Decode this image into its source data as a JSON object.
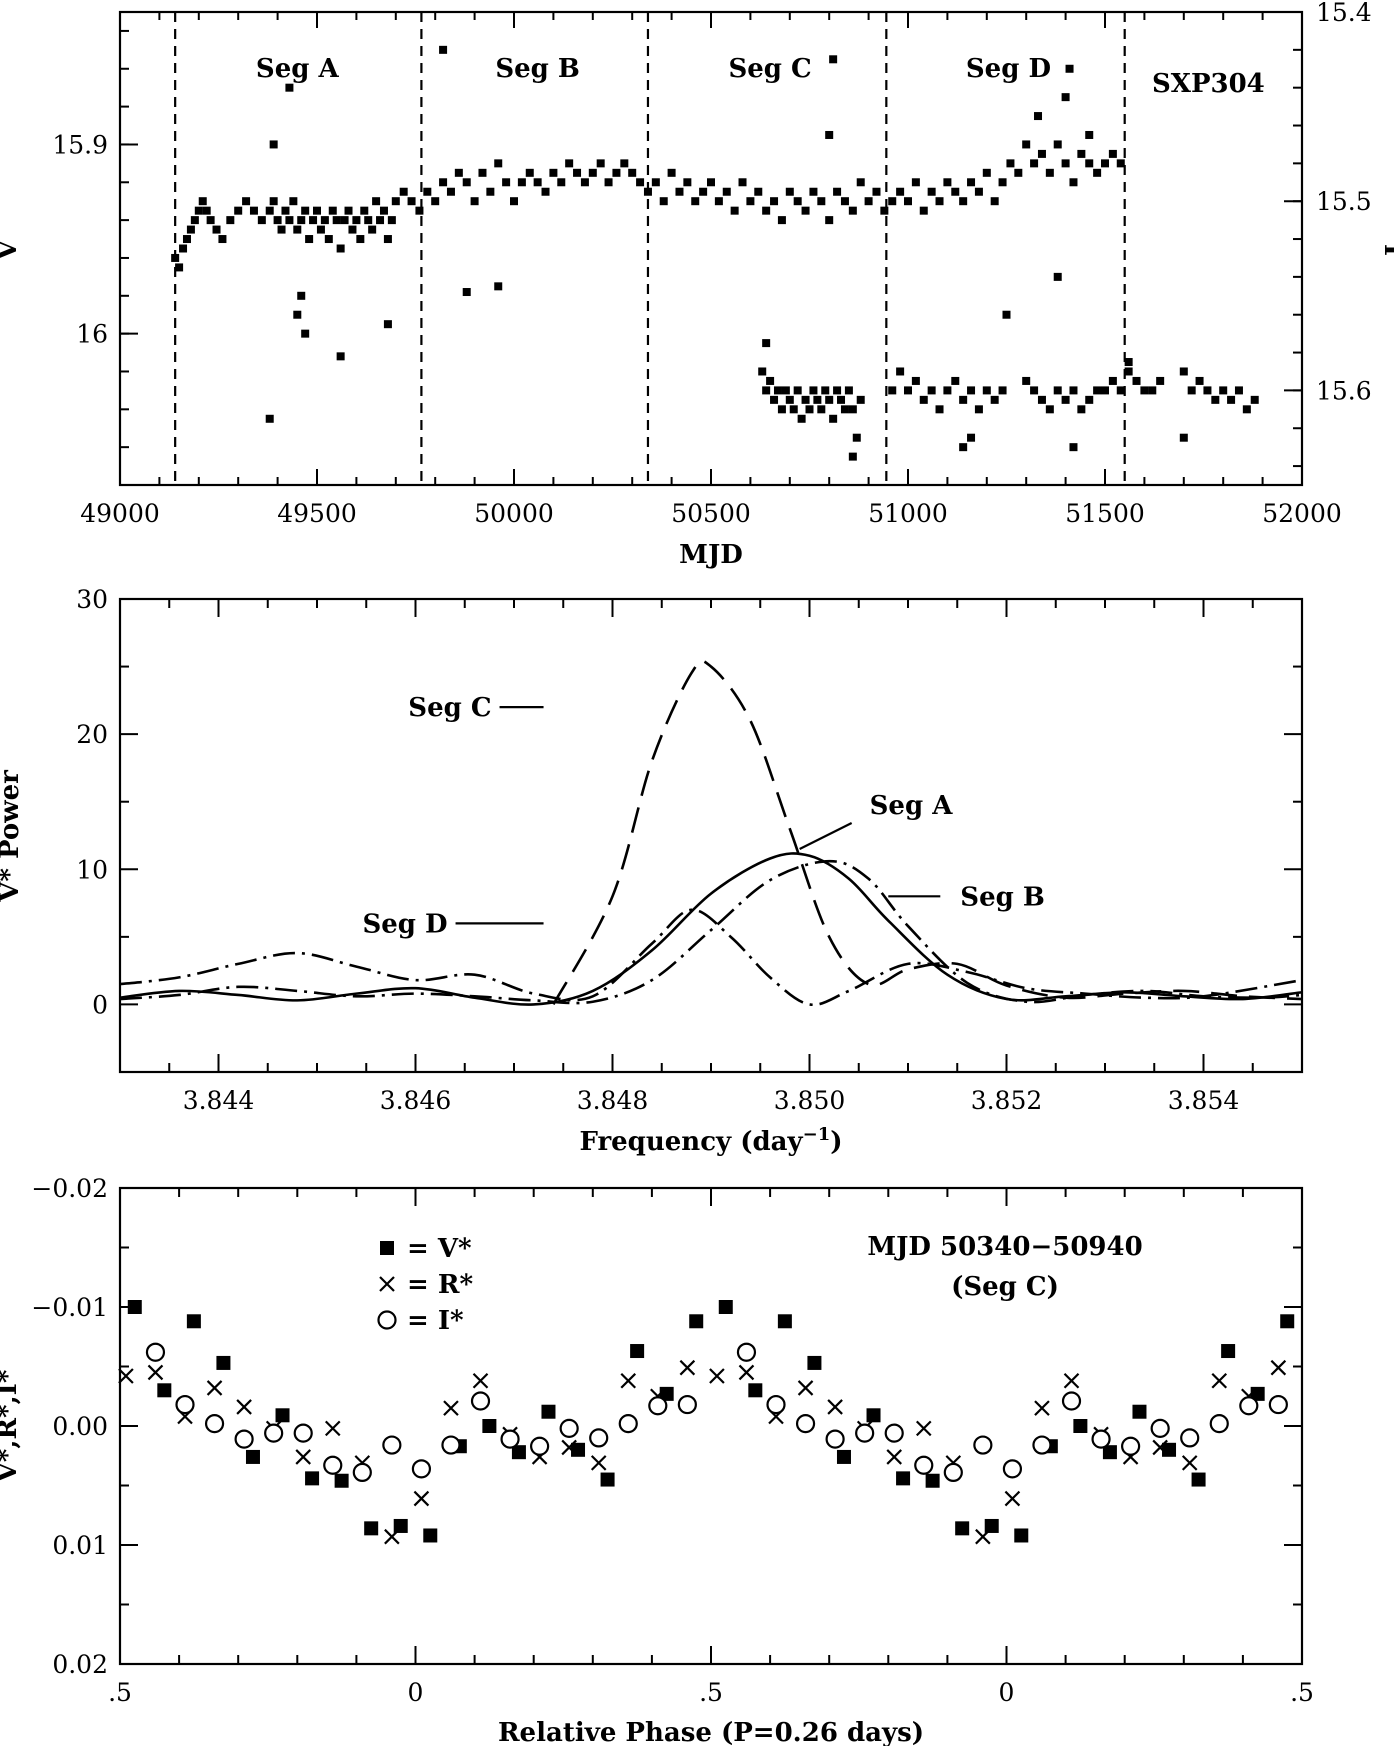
{
  "chart_data": [
    {
      "id": "lightcurve",
      "type": "scatter",
      "xlabel": "MJD",
      "ylabel_left": "V",
      "ylabel_right": "I",
      "xlim": [
        49000,
        52000
      ],
      "xticks": [
        "49000",
        "49500",
        "50000",
        "50500",
        "51000",
        "51500",
        "52000"
      ],
      "ylim_left": [
        16.08,
        15.83
      ],
      "yticks_left": [
        "15.9",
        "16"
      ],
      "yticks_left_values": [
        15.9,
        16.0
      ],
      "ylim_right": [
        15.65,
        15.4
      ],
      "yticks_right": [
        "15.4",
        "15.5",
        "15.6"
      ],
      "yticks_right_values": [
        15.4,
        15.5,
        15.6
      ],
      "object_label": "SXP304",
      "segment_boundaries": [
        49140,
        49765,
        50340,
        50945,
        51550
      ],
      "segments": [
        {
          "label": "Seg A",
          "center": 49450
        },
        {
          "label": "Seg B",
          "center": 50060
        },
        {
          "label": "Seg C",
          "center": 50650
        },
        {
          "label": "Seg D",
          "center": 51255
        }
      ],
      "series": [
        {
          "name": "V",
          "marker": "filled-square",
          "x": [
            49140,
            49150,
            49160,
            49170,
            49180,
            49190,
            49200,
            49210,
            49220,
            49230,
            49245,
            49260,
            49280,
            49300,
            49320,
            49340,
            49360,
            49380,
            49390,
            49400,
            49410,
            49420,
            49430,
            49440,
            49450,
            49460,
            49470,
            49480,
            49490,
            49500,
            49510,
            49520,
            49530,
            49540,
            49550,
            49560,
            49570,
            49580,
            49590,
            49600,
            49610,
            49620,
            49630,
            49640,
            49650,
            49660,
            49670,
            49680,
            49690,
            49700,
            49720,
            49740,
            49760,
            49780,
            49800,
            49820,
            49840,
            49860,
            49880,
            49900,
            49920,
            49940,
            49960,
            49980,
            50000,
            50020,
            50040,
            50060,
            50080,
            50100,
            50120,
            50140,
            50160,
            50180,
            50200,
            50220,
            50240,
            50260,
            50280,
            50300,
            50320,
            50340,
            50360,
            50380,
            50400,
            50420,
            50440,
            50460,
            50480,
            50500,
            50520,
            50540,
            50560,
            50580,
            50600,
            50620,
            50640,
            50660,
            50680,
            50700,
            50720,
            50740,
            50760,
            50780,
            50800,
            50820,
            50840,
            50860,
            50880,
            50900,
            50920,
            50940,
            50960,
            50980,
            51000,
            51020,
            51040,
            51060,
            51080,
            51100,
            51120,
            51140,
            51160,
            51180,
            51200,
            51220,
            51240,
            51260,
            51280,
            51300,
            51320,
            51340,
            51360,
            51380,
            51400,
            51420,
            51440,
            51460,
            51480,
            51500,
            51520,
            51540,
            49380,
            49460,
            49470,
            49450,
            49430,
            49560,
            49680,
            49390,
            49820,
            49880,
            49960,
            50810,
            50800,
            51410,
            51400,
            51330,
            51250,
            51460,
            51380
          ],
          "y": [
            15.96,
            15.965,
            15.955,
            15.95,
            15.945,
            15.94,
            15.935,
            15.93,
            15.935,
            15.94,
            15.945,
            15.95,
            15.94,
            15.935,
            15.93,
            15.935,
            15.94,
            15.935,
            15.93,
            15.94,
            15.945,
            15.935,
            15.94,
            15.93,
            15.945,
            15.94,
            15.935,
            15.95,
            15.94,
            15.935,
            15.945,
            15.94,
            15.95,
            15.935,
            15.94,
            15.955,
            15.94,
            15.935,
            15.945,
            15.94,
            15.95,
            15.935,
            15.94,
            15.945,
            15.93,
            15.94,
            15.935,
            15.95,
            15.94,
            15.93,
            15.925,
            15.93,
            15.935,
            15.925,
            15.93,
            15.92,
            15.925,
            15.915,
            15.92,
            15.93,
            15.915,
            15.925,
            15.91,
            15.92,
            15.93,
            15.92,
            15.915,
            15.92,
            15.925,
            15.915,
            15.92,
            15.91,
            15.915,
            15.92,
            15.915,
            15.91,
            15.92,
            15.915,
            15.91,
            15.915,
            15.92,
            15.925,
            15.92,
            15.93,
            15.915,
            15.925,
            15.92,
            15.93,
            15.925,
            15.92,
            15.93,
            15.925,
            15.935,
            15.92,
            15.93,
            15.925,
            15.935,
            15.93,
            15.94,
            15.925,
            15.93,
            15.935,
            15.925,
            15.93,
            15.94,
            15.925,
            15.93,
            15.935,
            15.92,
            15.93,
            15.925,
            15.935,
            15.93,
            15.925,
            15.93,
            15.92,
            15.935,
            15.925,
            15.93,
            15.92,
            15.925,
            15.93,
            15.92,
            15.925,
            15.915,
            15.93,
            15.92,
            15.91,
            15.915,
            15.9,
            15.91,
            15.905,
            15.915,
            15.9,
            15.91,
            15.92,
            15.905,
            15.91,
            15.915,
            15.91,
            15.905,
            15.91,
            16.045,
            15.98,
            16.0,
            15.99,
            15.87,
            16.012,
            15.995,
            15.9,
            15.85,
            15.978,
            15.975,
            15.855,
            15.895,
            15.86,
            15.875,
            15.885,
            15.99,
            15.895,
            15.97
          ]
        },
        {
          "name": "I",
          "marker": "filled-square",
          "x": [
            50630,
            50640,
            50650,
            50660,
            50670,
            50680,
            50690,
            50700,
            50710,
            50720,
            50730,
            50740,
            50750,
            50760,
            50770,
            50780,
            50790,
            50800,
            50810,
            50820,
            50830,
            50840,
            50850,
            50860,
            50880,
            50960,
            50980,
            51000,
            51020,
            51040,
            51060,
            51080,
            51100,
            51120,
            51140,
            51160,
            51180,
            51200,
            51220,
            51240,
            51300,
            51320,
            51340,
            51360,
            51380,
            51400,
            51420,
            51440,
            51460,
            51480,
            51500,
            51520,
            51540,
            51560,
            51580,
            51600,
            51620,
            51640,
            51700,
            51720,
            51740,
            51760,
            51780,
            51800,
            51820,
            51840,
            51860,
            51880,
            50640,
            50860,
            50870,
            51140,
            51160,
            51420,
            51700,
            51560
          ],
          "y": [
            15.59,
            15.6,
            15.595,
            15.605,
            15.6,
            15.61,
            15.6,
            15.605,
            15.61,
            15.6,
            15.615,
            15.605,
            15.61,
            15.6,
            15.605,
            15.61,
            15.6,
            15.605,
            15.615,
            15.6,
            15.605,
            15.61,
            15.6,
            15.61,
            15.605,
            15.6,
            15.59,
            15.6,
            15.595,
            15.605,
            15.6,
            15.61,
            15.6,
            15.595,
            15.605,
            15.6,
            15.61,
            15.6,
            15.605,
            15.6,
            15.595,
            15.6,
            15.605,
            15.61,
            15.6,
            15.605,
            15.6,
            15.61,
            15.605,
            15.6,
            15.6,
            15.595,
            15.6,
            15.59,
            15.595,
            15.6,
            15.6,
            15.595,
            15.59,
            15.6,
            15.595,
            15.6,
            15.605,
            15.6,
            15.605,
            15.6,
            15.61,
            15.605,
            15.575,
            15.635,
            15.625,
            15.63,
            15.625,
            15.63,
            15.625,
            15.585
          ]
        }
      ]
    },
    {
      "id": "periodogram",
      "type": "line",
      "xlabel": "Frequency (day",
      "xlabel_sup": "−1",
      "xlabel_tail": ")",
      "ylabel": "V* Power",
      "xlim": [
        3.843,
        3.855
      ],
      "xticks": [
        "3.844",
        "3.846",
        "3.848",
        "3.850",
        "3.852",
        "3.854"
      ],
      "xticks_values": [
        3.844,
        3.846,
        3.848,
        3.85,
        3.852,
        3.854
      ],
      "ylim": [
        -5,
        30
      ],
      "yticks": [
        "0",
        "10",
        "20",
        "30"
      ],
      "yticks_values": [
        0,
        10,
        20,
        30
      ],
      "series": [
        {
          "name": "Seg A",
          "style": "solid",
          "x": [
            3.843,
            3.8436,
            3.8442,
            3.8448,
            3.8454,
            3.846,
            3.8466,
            3.8472,
            3.8478,
            3.8484,
            3.849,
            3.8496,
            3.85,
            3.8504,
            3.8508,
            3.8514,
            3.852,
            3.8526,
            3.8532,
            3.8538,
            3.8544,
            3.855
          ],
          "y": [
            0.5,
            1.0,
            0.7,
            0.3,
            0.8,
            1.2,
            0.5,
            0.0,
            1.0,
            4.0,
            8.2,
            10.8,
            11.0,
            9.3,
            6.2,
            2.2,
            0.4,
            0.6,
            0.9,
            0.6,
            0.4,
            0.9
          ]
        },
        {
          "name": "Seg B",
          "style": "dash-dot",
          "x": [
            3.843,
            3.8436,
            3.8442,
            3.8448,
            3.8454,
            3.846,
            3.8466,
            3.8472,
            3.8478,
            3.8484,
            3.849,
            3.8496,
            3.8502,
            3.8506,
            3.851,
            3.8516,
            3.8522,
            3.8528,
            3.8534,
            3.854,
            3.8546,
            3.855
          ],
          "y": [
            0.4,
            0.7,
            1.3,
            1.0,
            0.6,
            0.8,
            0.6,
            0.3,
            0.2,
            1.8,
            5.5,
            9.2,
            10.6,
            9.3,
            5.8,
            1.6,
            0.2,
            0.7,
            1.0,
            0.6,
            0.5,
            0.7
          ]
        },
        {
          "name": "Seg C",
          "style": "long-dash",
          "x": [
            3.8474,
            3.848,
            3.8484,
            3.8488,
            3.849,
            3.8494,
            3.8498,
            3.8502,
            3.8506,
            3.851,
            3.8515,
            3.852,
            3.8526,
            3.8532,
            3.8538,
            3.8544,
            3.855
          ],
          "y": [
            0.0,
            8.0,
            18.0,
            24.5,
            25.0,
            21.0,
            13.0,
            5.0,
            1.5,
            2.6,
            3.0,
            1.4,
            0.5,
            0.8,
            1.0,
            0.6,
            0.4
          ]
        },
        {
          "name": "Seg D",
          "style": "dash-dot",
          "x": [
            3.843,
            3.8436,
            3.8442,
            3.8448,
            3.8454,
            3.846,
            3.8466,
            3.8472,
            3.8478,
            3.8484,
            3.8488,
            3.8492,
            3.8496,
            3.85,
            3.8504,
            3.851,
            3.8516,
            3.8522,
            3.8528,
            3.8534,
            3.854,
            3.855
          ],
          "y": [
            1.5,
            2.0,
            3.0,
            3.8,
            2.8,
            1.8,
            2.2,
            0.8,
            0.6,
            4.5,
            7.0,
            5.0,
            2.0,
            0.0,
            1.0,
            3.0,
            2.4,
            1.2,
            0.8,
            0.5,
            0.6,
            1.8
          ]
        }
      ],
      "annotations": [
        {
          "label": "Seg C",
          "anchor_x": 3.8473,
          "anchor_y": 22
        },
        {
          "label": "Seg A",
          "anchor_x": 3.8499,
          "anchor_y": 11.5
        },
        {
          "label": "Seg B",
          "anchor_x": 3.8508,
          "anchor_y": 8
        },
        {
          "label": "Seg D",
          "anchor_x": 3.8473,
          "anchor_y": 6
        }
      ]
    },
    {
      "id": "phase",
      "type": "scatter",
      "xlabel": "Relative Phase (P=0.26 days)",
      "ylabel": "V*,R*,I*",
      "xlim": [
        -0.5,
        1.5
      ],
      "xticks": [
        ".5",
        "0",
        ".5",
        "0",
        ".5"
      ],
      "xticks_values": [
        -0.5,
        0,
        0.5,
        1.0,
        1.5
      ],
      "ylim": [
        0.02,
        -0.02
      ],
      "yticks": [
        "−0.02",
        "−0.01",
        "0.00",
        "0.01",
        "0.02"
      ],
      "yticks_values": [
        -0.02,
        -0.01,
        0.0,
        0.01,
        0.02
      ],
      "legend": [
        {
          "symbol": "filled-square",
          "label": "= V*"
        },
        {
          "symbol": "cross",
          "label": "= R*"
        },
        {
          "symbol": "open-circle",
          "label": "= I*"
        }
      ],
      "title_lines": [
        "MJD 50340−50940",
        "(Seg C)"
      ],
      "series": [
        {
          "name": "V*",
          "marker": "filled-square",
          "x": [
            -0.475,
            -0.425,
            -0.375,
            -0.325,
            -0.275,
            -0.225,
            -0.175,
            -0.125,
            -0.075,
            -0.025,
            0.025,
            0.075,
            0.125,
            0.175,
            0.225,
            0.275,
            0.325,
            0.375,
            0.425,
            0.475
          ],
          "y": [
            -0.01,
            -0.003,
            -0.0088,
            -0.0053,
            0.0026,
            -0.0009,
            0.0044,
            0.0046,
            0.0086,
            0.0084,
            0.0092,
            0.0017,
            0.0,
            0.0022,
            -0.0012,
            0.002,
            0.0045,
            -0.0063,
            -0.0027,
            -0.0088
          ]
        },
        {
          "name": "R*",
          "marker": "cross",
          "x": [
            -0.49,
            -0.44,
            -0.39,
            -0.34,
            -0.29,
            -0.24,
            -0.19,
            -0.14,
            -0.09,
            -0.04,
            0.01,
            0.06,
            0.11,
            0.16,
            0.21,
            0.26,
            0.31,
            0.36,
            0.41,
            0.46
          ],
          "y": [
            -0.0042,
            -0.0045,
            -0.0008,
            -0.0032,
            -0.0016,
            0.0002,
            0.0026,
            0.0002,
            0.0031,
            0.0093,
            0.0061,
            -0.0015,
            -0.0038,
            0.0007,
            0.0026,
            0.0018,
            0.0031,
            -0.0038,
            -0.0025,
            -0.0049
          ]
        },
        {
          "name": "I*",
          "marker": "open-circle",
          "x": [
            -0.44,
            -0.39,
            -0.34,
            -0.29,
            -0.24,
            -0.19,
            -0.14,
            -0.09,
            -0.04,
            0.01,
            0.06,
            0.11,
            0.16,
            0.21,
            0.26,
            0.31,
            0.36,
            0.41,
            0.46
          ],
          "y": [
            -0.0062,
            -0.0018,
            -0.0002,
            0.0011,
            0.0006,
            0.0006,
            0.0033,
            0.0039,
            0.0016,
            0.0036,
            0.0016,
            -0.0021,
            0.0011,
            0.0017,
            0.0002,
            0.001,
            -0.0002,
            -0.0017,
            -0.0018
          ]
        }
      ]
    }
  ]
}
